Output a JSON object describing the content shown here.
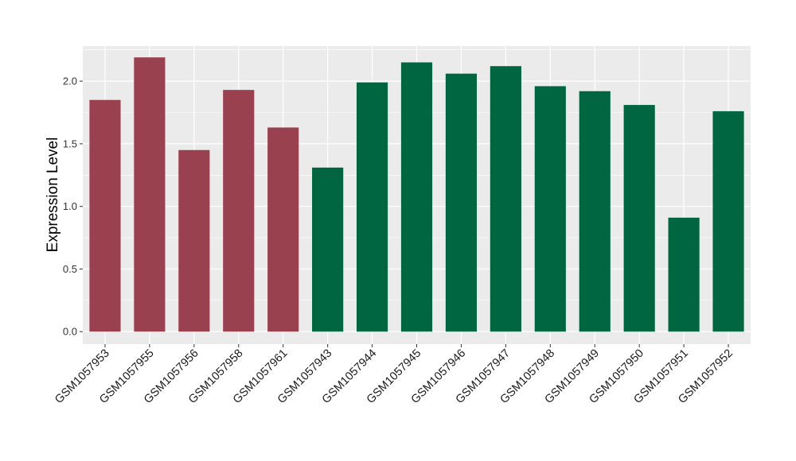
{
  "chart_data": {
    "type": "bar",
    "title": "",
    "xlabel": "",
    "ylabel": "Expression Level",
    "ylim": [
      -0.1,
      2.28
    ],
    "yticks": [
      0.0,
      0.5,
      1.0,
      1.5,
      2.0
    ],
    "ytick_labels": [
      "0.0",
      "0.5",
      "1.0",
      "1.5",
      "2.0"
    ],
    "grid": true,
    "legend": "none",
    "categories": [
      "GSM1057953",
      "GSM1057955",
      "GSM1057956",
      "GSM1057958",
      "GSM1057961",
      "GSM1057943",
      "GSM1057944",
      "GSM1057945",
      "GSM1057946",
      "GSM1057947",
      "GSM1057948",
      "GSM1057949",
      "GSM1057950",
      "GSM1057951",
      "GSM1057952"
    ],
    "values": [
      1.85,
      2.19,
      1.45,
      1.93,
      1.63,
      1.31,
      1.99,
      2.15,
      2.06,
      2.12,
      1.96,
      1.92,
      1.81,
      0.91,
      1.76
    ],
    "groups": [
      "a",
      "a",
      "a",
      "a",
      "a",
      "b",
      "b",
      "b",
      "b",
      "b",
      "b",
      "b",
      "b",
      "b",
      "b"
    ],
    "colors": {
      "a": "#99414f",
      "b": "#006641"
    },
    "panel_background": "#ebebeb",
    "gridline_color": "#ffffff"
  }
}
